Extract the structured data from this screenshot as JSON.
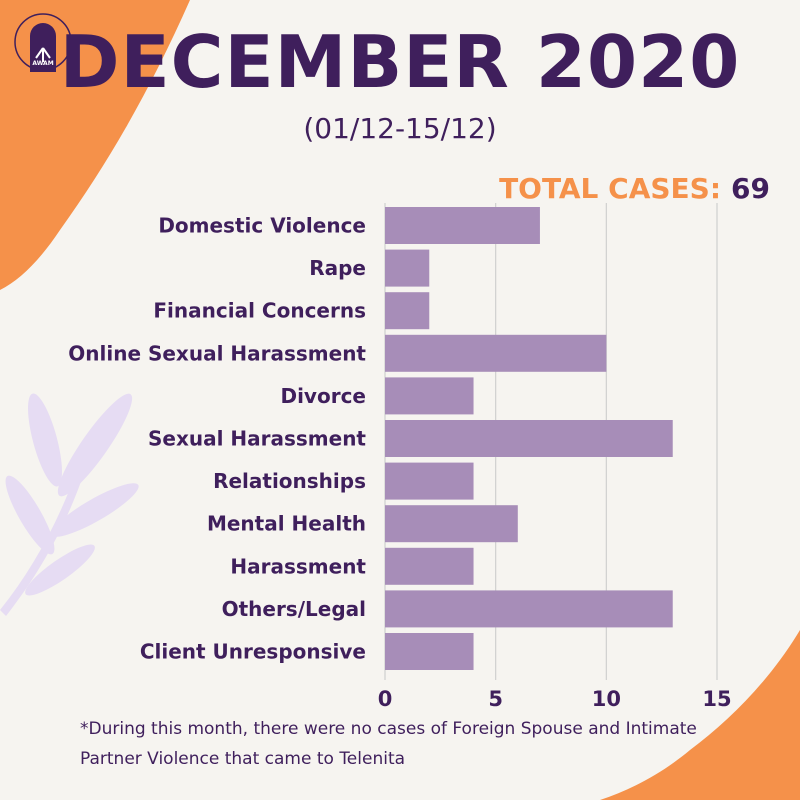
{
  "header": {
    "title": "DECEMBER 2020",
    "subtitle": "(01/12-15/12)",
    "total_label": "TOTAL CASES:",
    "total_value": "69"
  },
  "logo": {
    "name": "awam-logo",
    "text": "AWAM"
  },
  "colors": {
    "title": "#3f1f5c",
    "accent_orange": "#f5914a",
    "bar": "#a78db8",
    "background": "#f6f4f0",
    "leaf": "#e6dcf3"
  },
  "chart_data": {
    "type": "bar",
    "orientation": "horizontal",
    "categories": [
      "Domestic Violence",
      "Rape",
      "Financial Concerns",
      "Online Sexual Harassment",
      "Divorce",
      "Sexual Harassment",
      "Relationships",
      "Mental Health",
      "Harassment",
      "Others/Legal",
      "Client Unresponsive"
    ],
    "values": [
      7,
      2,
      2,
      10,
      4,
      13,
      4,
      6,
      4,
      13,
      4
    ],
    "xlim": [
      0,
      15
    ],
    "xticks": [
      0,
      5,
      10,
      15
    ],
    "grid": true
  },
  "footnote": "*During this month, there were no cases of Foreign Spouse and Intimate Partner Violence that came to Telenita"
}
